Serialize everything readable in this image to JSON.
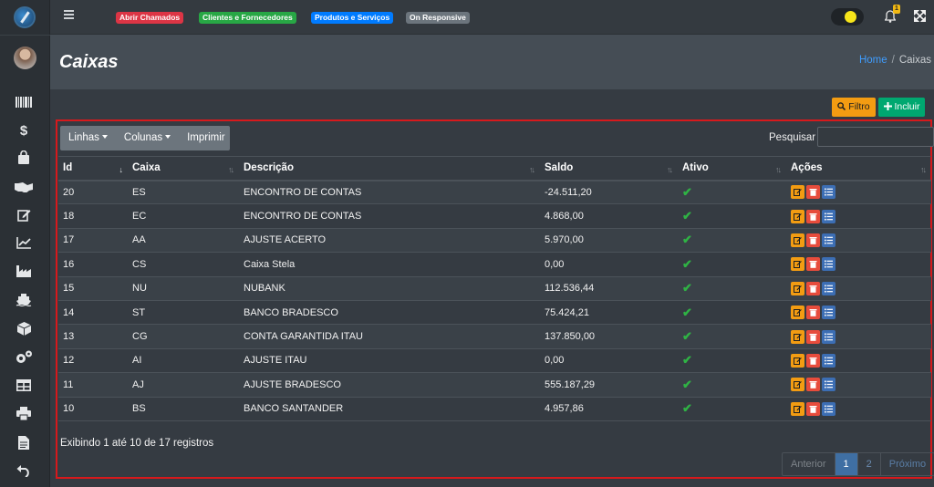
{
  "topbar": {
    "badges": [
      {
        "label": "Abrir Chamados",
        "color": "#dc3545"
      },
      {
        "label": "Clientes e Fornecedores",
        "color": "#28a745"
      },
      {
        "label": "Produtos e Serviços",
        "color": "#007bff"
      },
      {
        "label": "On Responsive",
        "color": "#6c757d"
      }
    ],
    "notifications_count": "1"
  },
  "header": {
    "title": "Caixas",
    "breadcrumb_home": "Home",
    "breadcrumb_current": "Caixas"
  },
  "actions": {
    "filter_label": "Filtro",
    "add_label": "Incluir"
  },
  "table_tools": {
    "rows_label": "Linhas",
    "columns_label": "Colunas",
    "print_label": "Imprimir",
    "search_label": "Pesquisar",
    "search_value": ""
  },
  "table": {
    "columns": [
      "Id",
      "Caixa",
      "Descrição",
      "Saldo",
      "Ativo",
      "Ações"
    ],
    "rows": [
      {
        "id": "20",
        "caixa": "ES",
        "descricao": "ENCONTRO DE CONTAS",
        "saldo": "-24.511,20",
        "ativo": true
      },
      {
        "id": "18",
        "caixa": "EC",
        "descricao": "ENCONTRO DE CONTAS",
        "saldo": "4.868,00",
        "ativo": true
      },
      {
        "id": "17",
        "caixa": "AA",
        "descricao": "AJUSTE ACERTO",
        "saldo": "5.970,00",
        "ativo": true
      },
      {
        "id": "16",
        "caixa": "CS",
        "descricao": "Caixa Stela",
        "saldo": "0,00",
        "ativo": true
      },
      {
        "id": "15",
        "caixa": "NU",
        "descricao": "NUBANK",
        "saldo": "112.536,44",
        "ativo": true
      },
      {
        "id": "14",
        "caixa": "ST",
        "descricao": "BANCO BRADESCO",
        "saldo": "75.424,21",
        "ativo": true
      },
      {
        "id": "13",
        "caixa": "CG",
        "descricao": "CONTA GARANTIDA ITAU",
        "saldo": "137.850,00",
        "ativo": true
      },
      {
        "id": "12",
        "caixa": "AI",
        "descricao": "AJUSTE ITAU",
        "saldo": "0,00",
        "ativo": true
      },
      {
        "id": "11",
        "caixa": "AJ",
        "descricao": "AJUSTE BRADESCO",
        "saldo": "555.187,29",
        "ativo": true
      },
      {
        "id": "10",
        "caixa": "BS",
        "descricao": "BANCO SANTANDER",
        "saldo": "4.957,86",
        "ativo": true
      }
    ]
  },
  "footer": {
    "info": "Exibindo 1 até 10 de 17 registros",
    "prev_label": "Anterior",
    "pages": [
      "1",
      "2"
    ],
    "current_page": "1",
    "next_label": "Próximo"
  },
  "sidebar": {
    "icons": [
      "barcode-icon",
      "dollar-icon",
      "shopping-bag-icon",
      "handshake-icon",
      "edit-icon",
      "chart-line-icon",
      "industry-icon",
      "ship-icon",
      "box-icon",
      "cogs-icon",
      "table-icon",
      "print-icon",
      "file-icon",
      "undo-icon"
    ]
  }
}
